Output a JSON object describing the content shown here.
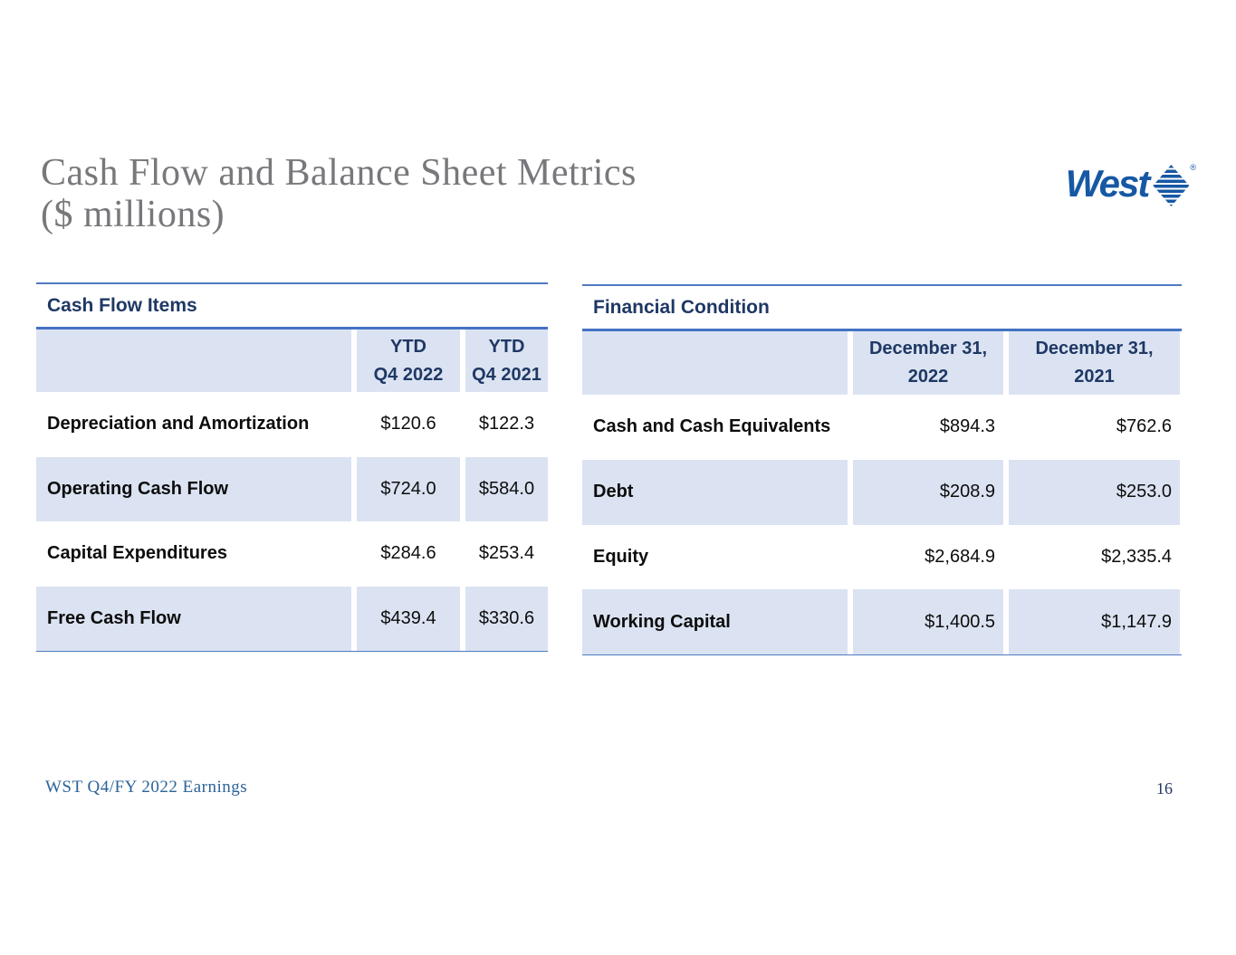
{
  "slide": {
    "title_line1": "Cash Flow and Balance Sheet Metrics",
    "title_line2": "($ millions)",
    "footer_left": "WST Q4/FY 2022 Earnings",
    "page_number": "16",
    "logo_text": "West",
    "logo_registered": "®"
  },
  "colors": {
    "accent_navy": "#1f3864",
    "rule_blue": "#4472c4",
    "band_fill": "#dbe3f2",
    "title_gray": "#77787b",
    "logo_blue": "#1658a3",
    "footer_blue": "#2c6398",
    "body_text": "#0d0d0d"
  },
  "cash_flow_table": {
    "section_title": "Cash Flow Items",
    "columns": [
      {
        "line1": "YTD",
        "line2": "Q4 2022"
      },
      {
        "line1": "YTD",
        "line2": "Q4 2021"
      }
    ],
    "rows": [
      {
        "label": "Depreciation and Amortization",
        "v2022": "$120.6",
        "v2021": "$122.3"
      },
      {
        "label": "Operating Cash Flow",
        "v2022": "$724.0",
        "v2021": "$584.0"
      },
      {
        "label": "Capital Expenditures",
        "v2022": "$284.6",
        "v2021": "$253.4"
      },
      {
        "label": "Free Cash Flow",
        "v2022": "$439.4",
        "v2021": "$330.6"
      }
    ]
  },
  "financial_condition_table": {
    "section_title": "Financial Condition",
    "columns": [
      {
        "line1": "December 31,",
        "line2": "2022"
      },
      {
        "line1": "December 31,",
        "line2": "2021"
      }
    ],
    "rows": [
      {
        "label": "Cash and Cash Equivalents",
        "v2022": "$894.3",
        "v2021": "$762.6"
      },
      {
        "label": "Debt",
        "v2022": "$208.9",
        "v2021": "$253.0"
      },
      {
        "label": "Equity",
        "v2022": "$2,684.9",
        "v2021": "$2,335.4"
      },
      {
        "label": "Working Capital",
        "v2022": "$1,400.5",
        "v2021": "$1,147.9"
      }
    ]
  },
  "chart_data": [
    {
      "type": "table",
      "title": "Cash Flow Items ($ millions)",
      "columns": [
        "",
        "YTD Q4 2022",
        "YTD Q4 2021"
      ],
      "rows": [
        [
          "Depreciation and Amortization",
          120.6,
          122.3
        ],
        [
          "Operating Cash Flow",
          724.0,
          584.0
        ],
        [
          "Capital Expenditures",
          284.6,
          253.4
        ],
        [
          "Free Cash Flow",
          439.4,
          330.6
        ]
      ]
    },
    {
      "type": "table",
      "title": "Financial Condition ($ millions)",
      "columns": [
        "",
        "December 31, 2022",
        "December 31, 2021"
      ],
      "rows": [
        [
          "Cash and Cash Equivalents",
          894.3,
          762.6
        ],
        [
          "Debt",
          208.9,
          253.0
        ],
        [
          "Equity",
          2684.9,
          2335.4
        ],
        [
          "Working Capital",
          1400.5,
          1147.9
        ]
      ]
    }
  ]
}
